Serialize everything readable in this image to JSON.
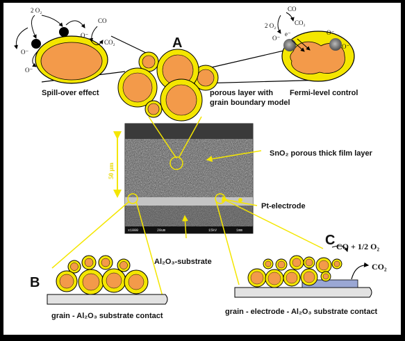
{
  "markers": {
    "a": "A",
    "b": "B",
    "c": "C"
  },
  "labels": {
    "spill_over": "Spill-over effect",
    "fermi": "Fermi-level control",
    "porous_layer_1": "porous layer with",
    "porous_layer_2": "grain boundary model",
    "sno2_layer": "SnO₂ porous thick film layer",
    "pt_electrode": "Pt-electrode",
    "al2o3_substrate": "Al₂O₃-substrate",
    "grain_substrate_contact": "grain - Al₂O₃ substrate contact",
    "grain_electrode_contact": "grain - electrode - Al₂O₃ substrate contact",
    "scale_bar": "50 µm"
  },
  "chemistry": {
    "o2_in": "2 O₂",
    "co": "CO",
    "co2": "CO₂",
    "o_minus": "O⁻",
    "e_minus": "e⁻",
    "co_half_o2": "CO + 1/2 O₂"
  },
  "sem": {
    "magnification": "x1000",
    "scale_text": "20um",
    "kv": "15kV",
    "num": "1mm"
  },
  "colors": {
    "grain_fill": "#f39a4a",
    "grain_ring": "#f4e600",
    "outline": "#000000",
    "substrate": "#e2e2e2",
    "electrode": "#9aa7d4",
    "callout_line": "#f4e600"
  }
}
